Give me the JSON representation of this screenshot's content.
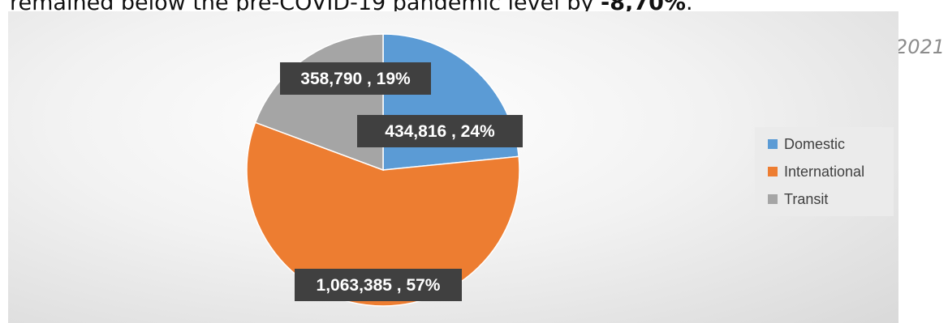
{
  "header_text": {
    "prefix": "remained below the pre-COVID-19 pandemic level by ",
    "value": "-8,70%",
    "suffix": "."
  },
  "side_text": "2021",
  "chart_data": {
    "type": "pie",
    "series": [
      {
        "name": "Domestic",
        "value": 434816,
        "percent": 24,
        "label": "434,816 , 24%",
        "color": "#5b9bd5"
      },
      {
        "name": "International",
        "value": 1063385,
        "percent": 57,
        "label": "1,063,385 , 57%",
        "color": "#ed7d31"
      },
      {
        "name": "Transit",
        "value": 358790,
        "percent": 19,
        "label": "358,790 , 19%",
        "color": "#a5a5a5"
      }
    ],
    "legend_position": "right",
    "label_box_color": "#404040",
    "label_text_color": "#ffffff"
  }
}
